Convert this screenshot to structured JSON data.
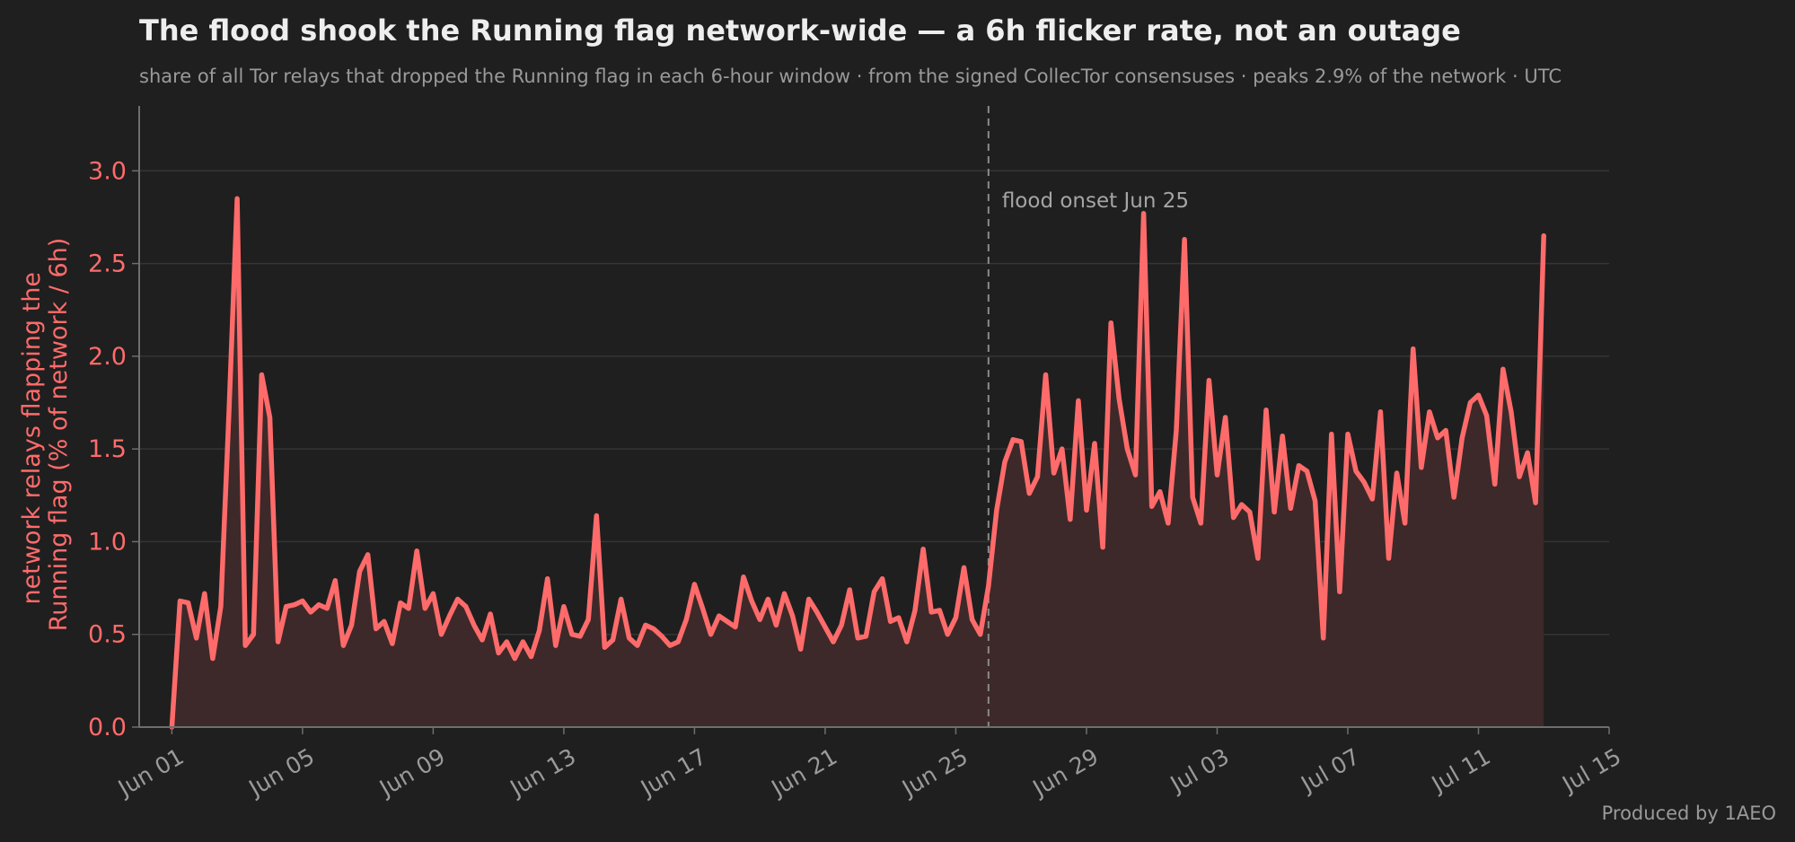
{
  "chart_data": {
    "type": "area",
    "title": "The flood shook the Running flag network-wide — a 6h flicker rate, not an outage",
    "subtitle": "share of all Tor relays that dropped the Running flag in each 6-hour window · from the signed CollecTor consensuses · peaks 2.9% of the network · UTC",
    "ylabel": "network relays flapping the\nRunning flag  (% of network / 6h)",
    "xlabel": "",
    "ylim": [
      0,
      3.35
    ],
    "xlim": [
      "2025-05-31",
      "2025-07-15"
    ],
    "y_ticks": [
      "0.0",
      "0.5",
      "1.0",
      "1.5",
      "2.0",
      "2.5",
      "3.0"
    ],
    "x_ticks": [
      {
        "date": "2025-06-01",
        "label": "Jun 01"
      },
      {
        "date": "2025-06-05",
        "label": "Jun 05"
      },
      {
        "date": "2025-06-09",
        "label": "Jun 09"
      },
      {
        "date": "2025-06-13",
        "label": "Jun 13"
      },
      {
        "date": "2025-06-17",
        "label": "Jun 17"
      },
      {
        "date": "2025-06-21",
        "label": "Jun 21"
      },
      {
        "date": "2025-06-25",
        "label": "Jun 25"
      },
      {
        "date": "2025-06-29",
        "label": "Jun 29"
      },
      {
        "date": "2025-07-03",
        "label": "Jul 03"
      },
      {
        "date": "2025-07-07",
        "label": "Jul 07"
      },
      {
        "date": "2025-07-11",
        "label": "Jul 11"
      },
      {
        "date": "2025-07-15",
        "label": "Jul 15"
      }
    ],
    "grid": true,
    "annotations": [
      {
        "date": "2025-06-26 00:00",
        "text": "flood onset Jun 25"
      }
    ],
    "series": [
      {
        "color": "#ff6b6b",
        "fill_color": "#3d2929",
        "points": [
          [
            "2025-06-01 00:00",
            0.0
          ],
          [
            "2025-06-01 06:00",
            0.68
          ],
          [
            "2025-06-01 12:00",
            0.67
          ],
          [
            "2025-06-01 18:00",
            0.48
          ],
          [
            "2025-06-02 00:00",
            0.72
          ],
          [
            "2025-06-02 06:00",
            0.37
          ],
          [
            "2025-06-02 12:00",
            0.65
          ],
          [
            "2025-06-02 18:00",
            1.7
          ],
          [
            "2025-06-03 00:00",
            2.85
          ],
          [
            "2025-06-03 06:00",
            0.44
          ],
          [
            "2025-06-03 12:00",
            0.5
          ],
          [
            "2025-06-03 18:00",
            1.9
          ],
          [
            "2025-06-04 00:00",
            1.67
          ],
          [
            "2025-06-04 06:00",
            0.46
          ],
          [
            "2025-06-04 12:00",
            0.65
          ],
          [
            "2025-06-04 18:00",
            0.66
          ],
          [
            "2025-06-05 00:00",
            0.68
          ],
          [
            "2025-06-05 06:00",
            0.62
          ],
          [
            "2025-06-05 12:00",
            0.66
          ],
          [
            "2025-06-05 18:00",
            0.64
          ],
          [
            "2025-06-06 00:00",
            0.79
          ],
          [
            "2025-06-06 06:00",
            0.44
          ],
          [
            "2025-06-06 12:00",
            0.55
          ],
          [
            "2025-06-06 18:00",
            0.84
          ],
          [
            "2025-06-07 00:00",
            0.93
          ],
          [
            "2025-06-07 06:00",
            0.53
          ],
          [
            "2025-06-07 12:00",
            0.57
          ],
          [
            "2025-06-07 18:00",
            0.45
          ],
          [
            "2025-06-08 00:00",
            0.67
          ],
          [
            "2025-06-08 06:00",
            0.64
          ],
          [
            "2025-06-08 12:00",
            0.95
          ],
          [
            "2025-06-08 18:00",
            0.64
          ],
          [
            "2025-06-09 00:00",
            0.72
          ],
          [
            "2025-06-09 06:00",
            0.5
          ],
          [
            "2025-06-09 12:00",
            0.6
          ],
          [
            "2025-06-09 18:00",
            0.69
          ],
          [
            "2025-06-10 00:00",
            0.65
          ],
          [
            "2025-06-10 06:00",
            0.55
          ],
          [
            "2025-06-10 12:00",
            0.47
          ],
          [
            "2025-06-10 18:00",
            0.61
          ],
          [
            "2025-06-11 00:00",
            0.4
          ],
          [
            "2025-06-11 06:00",
            0.46
          ],
          [
            "2025-06-11 12:00",
            0.37
          ],
          [
            "2025-06-11 18:00",
            0.46
          ],
          [
            "2025-06-12 00:00",
            0.38
          ],
          [
            "2025-06-12 06:00",
            0.52
          ],
          [
            "2025-06-12 12:00",
            0.8
          ],
          [
            "2025-06-12 18:00",
            0.44
          ],
          [
            "2025-06-13 00:00",
            0.65
          ],
          [
            "2025-06-13 06:00",
            0.5
          ],
          [
            "2025-06-13 12:00",
            0.49
          ],
          [
            "2025-06-13 18:00",
            0.58
          ],
          [
            "2025-06-14 00:00",
            1.14
          ],
          [
            "2025-06-14 06:00",
            0.43
          ],
          [
            "2025-06-14 12:00",
            0.47
          ],
          [
            "2025-06-14 18:00",
            0.69
          ],
          [
            "2025-06-15 00:00",
            0.48
          ],
          [
            "2025-06-15 06:00",
            0.44
          ],
          [
            "2025-06-15 12:00",
            0.55
          ],
          [
            "2025-06-15 18:00",
            0.53
          ],
          [
            "2025-06-16 00:00",
            0.49
          ],
          [
            "2025-06-16 06:00",
            0.44
          ],
          [
            "2025-06-16 12:00",
            0.46
          ],
          [
            "2025-06-16 18:00",
            0.58
          ],
          [
            "2025-06-17 00:00",
            0.77
          ],
          [
            "2025-06-17 06:00",
            0.64
          ],
          [
            "2025-06-17 12:00",
            0.5
          ],
          [
            "2025-06-17 18:00",
            0.6
          ],
          [
            "2025-06-18 00:00",
            0.57
          ],
          [
            "2025-06-18 06:00",
            0.54
          ],
          [
            "2025-06-18 12:00",
            0.81
          ],
          [
            "2025-06-18 18:00",
            0.68
          ],
          [
            "2025-06-19 00:00",
            0.58
          ],
          [
            "2025-06-19 06:00",
            0.69
          ],
          [
            "2025-06-19 12:00",
            0.55
          ],
          [
            "2025-06-19 18:00",
            0.72
          ],
          [
            "2025-06-20 00:00",
            0.6
          ],
          [
            "2025-06-20 06:00",
            0.42
          ],
          [
            "2025-06-20 12:00",
            0.69
          ],
          [
            "2025-06-20 18:00",
            0.62
          ],
          [
            "2025-06-21 00:00",
            0.54
          ],
          [
            "2025-06-21 06:00",
            0.46
          ],
          [
            "2025-06-21 12:00",
            0.55
          ],
          [
            "2025-06-21 18:00",
            0.74
          ],
          [
            "2025-06-22 00:00",
            0.48
          ],
          [
            "2025-06-22 06:00",
            0.49
          ],
          [
            "2025-06-22 12:00",
            0.73
          ],
          [
            "2025-06-22 18:00",
            0.8
          ],
          [
            "2025-06-23 00:00",
            0.57
          ],
          [
            "2025-06-23 06:00",
            0.59
          ],
          [
            "2025-06-23 12:00",
            0.46
          ],
          [
            "2025-06-23 18:00",
            0.63
          ],
          [
            "2025-06-24 00:00",
            0.96
          ],
          [
            "2025-06-24 06:00",
            0.62
          ],
          [
            "2025-06-24 12:00",
            0.63
          ],
          [
            "2025-06-24 18:00",
            0.5
          ],
          [
            "2025-06-25 00:00",
            0.59
          ],
          [
            "2025-06-25 06:00",
            0.86
          ],
          [
            "2025-06-25 12:00",
            0.58
          ],
          [
            "2025-06-25 18:00",
            0.5
          ],
          [
            "2025-06-26 00:00",
            0.76
          ],
          [
            "2025-06-26 06:00",
            1.17
          ],
          [
            "2025-06-26 12:00",
            1.43
          ],
          [
            "2025-06-26 18:00",
            1.55
          ],
          [
            "2025-06-27 00:00",
            1.54
          ],
          [
            "2025-06-27 06:00",
            1.26
          ],
          [
            "2025-06-27 12:00",
            1.35
          ],
          [
            "2025-06-27 18:00",
            1.9
          ],
          [
            "2025-06-28 00:00",
            1.37
          ],
          [
            "2025-06-28 06:00",
            1.5
          ],
          [
            "2025-06-28 12:00",
            1.12
          ],
          [
            "2025-06-28 18:00",
            1.76
          ],
          [
            "2025-06-29 00:00",
            1.17
          ],
          [
            "2025-06-29 06:00",
            1.53
          ],
          [
            "2025-06-29 12:00",
            0.97
          ],
          [
            "2025-06-29 18:00",
            2.18
          ],
          [
            "2025-06-30 00:00",
            1.77
          ],
          [
            "2025-06-30 06:00",
            1.5
          ],
          [
            "2025-06-30 12:00",
            1.36
          ],
          [
            "2025-06-30 18:00",
            2.77
          ],
          [
            "2025-07-01 00:00",
            1.19
          ],
          [
            "2025-07-01 06:00",
            1.27
          ],
          [
            "2025-07-01 12:00",
            1.1
          ],
          [
            "2025-07-01 18:00",
            1.6
          ],
          [
            "2025-07-02 00:00",
            2.63
          ],
          [
            "2025-07-02 06:00",
            1.24
          ],
          [
            "2025-07-02 12:00",
            1.1
          ],
          [
            "2025-07-02 18:00",
            1.87
          ],
          [
            "2025-07-03 00:00",
            1.36
          ],
          [
            "2025-07-03 06:00",
            1.67
          ],
          [
            "2025-07-03 12:00",
            1.13
          ],
          [
            "2025-07-03 18:00",
            1.2
          ],
          [
            "2025-07-04 00:00",
            1.16
          ],
          [
            "2025-07-04 06:00",
            0.91
          ],
          [
            "2025-07-04 12:00",
            1.71
          ],
          [
            "2025-07-04 18:00",
            1.16
          ],
          [
            "2025-07-05 00:00",
            1.57
          ],
          [
            "2025-07-05 06:00",
            1.18
          ],
          [
            "2025-07-05 12:00",
            1.41
          ],
          [
            "2025-07-05 18:00",
            1.38
          ],
          [
            "2025-07-06 00:00",
            1.22
          ],
          [
            "2025-07-06 06:00",
            0.48
          ],
          [
            "2025-07-06 12:00",
            1.58
          ],
          [
            "2025-07-06 18:00",
            0.73
          ],
          [
            "2025-07-07 00:00",
            1.58
          ],
          [
            "2025-07-07 06:00",
            1.38
          ],
          [
            "2025-07-07 12:00",
            1.32
          ],
          [
            "2025-07-07 18:00",
            1.23
          ],
          [
            "2025-07-08 00:00",
            1.7
          ],
          [
            "2025-07-08 06:00",
            0.91
          ],
          [
            "2025-07-08 12:00",
            1.37
          ],
          [
            "2025-07-08 18:00",
            1.1
          ],
          [
            "2025-07-09 00:00",
            2.04
          ],
          [
            "2025-07-09 06:00",
            1.4
          ],
          [
            "2025-07-09 12:00",
            1.7
          ],
          [
            "2025-07-09 18:00",
            1.56
          ],
          [
            "2025-07-10 00:00",
            1.6
          ],
          [
            "2025-07-10 06:00",
            1.24
          ],
          [
            "2025-07-10 12:00",
            1.56
          ],
          [
            "2025-07-10 18:00",
            1.75
          ],
          [
            "2025-07-11 00:00",
            1.79
          ],
          [
            "2025-07-11 06:00",
            1.68
          ],
          [
            "2025-07-11 12:00",
            1.31
          ],
          [
            "2025-07-11 18:00",
            1.93
          ],
          [
            "2025-07-12 00:00",
            1.7
          ],
          [
            "2025-07-12 06:00",
            1.35
          ],
          [
            "2025-07-12 12:00",
            1.48
          ],
          [
            "2025-07-12 18:00",
            1.21
          ],
          [
            "2025-07-13 00:00",
            2.65
          ]
        ]
      }
    ]
  },
  "footer": {
    "credit": "Produced by 1AEO"
  },
  "colors": {
    "background": "#1f1f1f",
    "accent": "#ff6b6b",
    "fill": "#3d2929",
    "muted_text": "#9a9a9a",
    "title_text": "#eeeeee",
    "axis": "#6e6e6e",
    "grid": "#353535"
  }
}
